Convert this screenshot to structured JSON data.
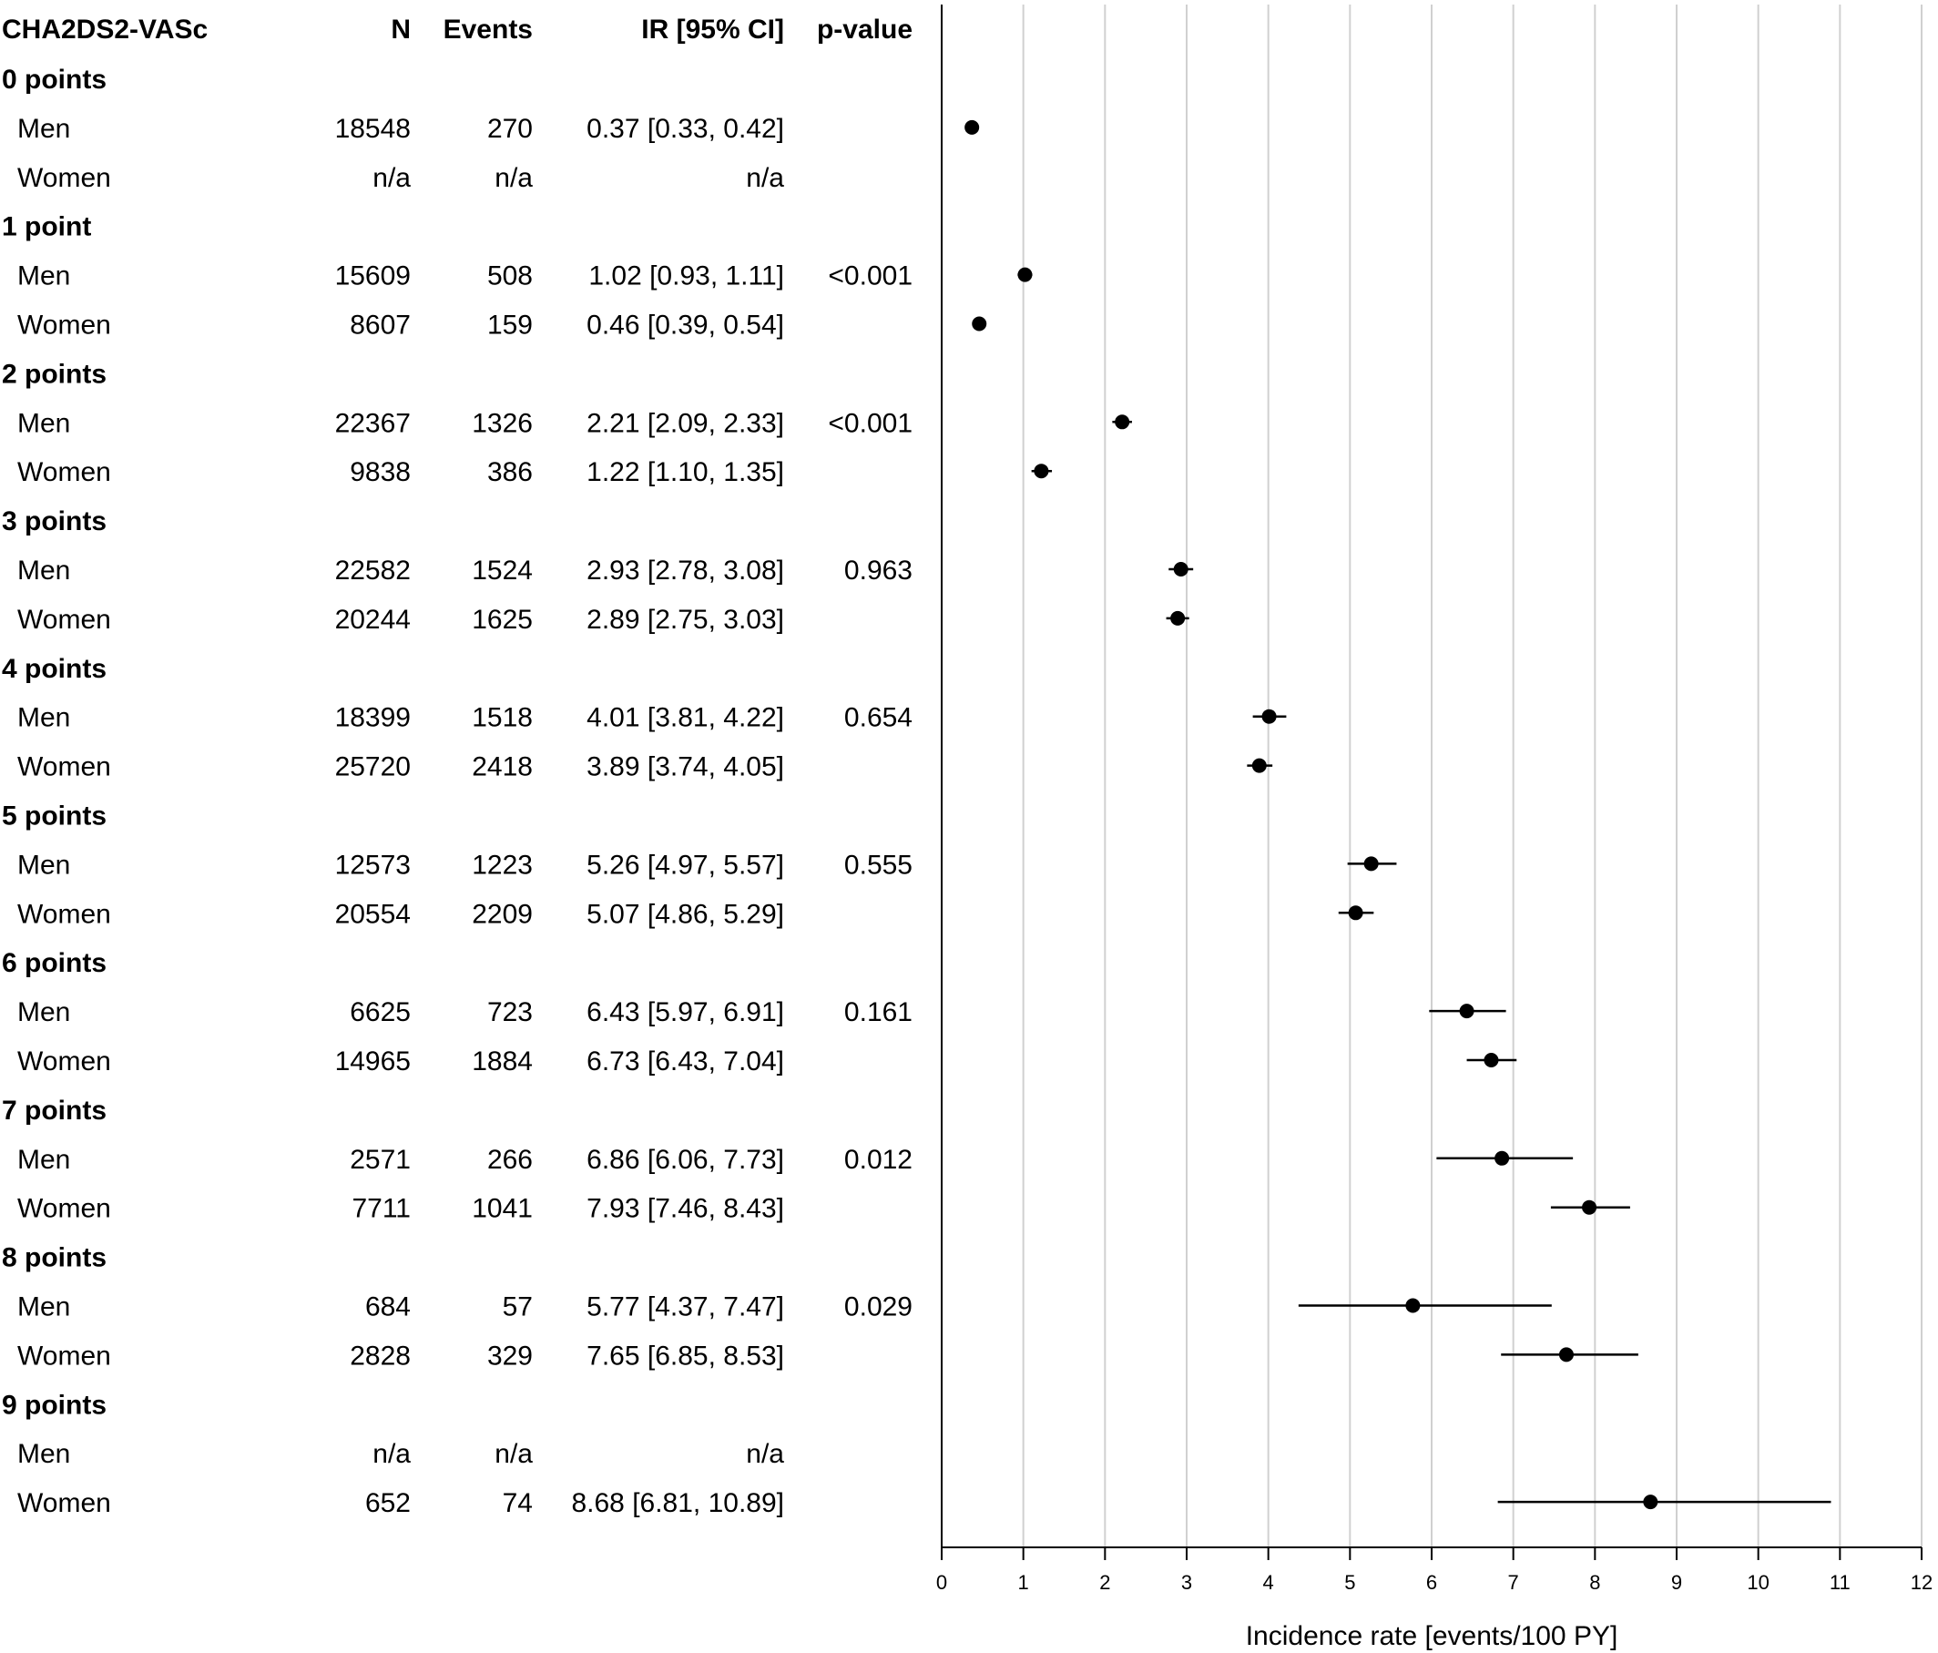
{
  "table": {
    "headers": {
      "label": "CHA2DS2-VASc",
      "n": "N",
      "events": "Events",
      "ir": "IR [95% CI]",
      "p": "p-value"
    }
  },
  "chart_data": {
    "type": "forest",
    "xlabel": "Incidence rate [events/100 PY]",
    "xlim": [
      0,
      12
    ],
    "xticks": [
      "0",
      "1",
      "2",
      "3",
      "4",
      "5",
      "6",
      "7",
      "8",
      "9",
      "10",
      "11",
      "12"
    ],
    "grid": true,
    "groups": [
      {
        "label": "0 points",
        "rows": [
          {
            "label": "Men",
            "n": "18548",
            "events": "270",
            "ir_text": "0.37 [0.33, 0.42]",
            "p": "",
            "ir": 0.37,
            "lo": 0.33,
            "hi": 0.42
          },
          {
            "label": "Women",
            "n": "n/a",
            "events": "n/a",
            "ir_text": "n/a",
            "p": "",
            "ir": null,
            "lo": null,
            "hi": null
          }
        ]
      },
      {
        "label": "1 point",
        "rows": [
          {
            "label": "Men",
            "n": "15609",
            "events": "508",
            "ir_text": "1.02 [0.93, 1.11]",
            "p": "<0.001",
            "ir": 1.02,
            "lo": 0.93,
            "hi": 1.11
          },
          {
            "label": "Women",
            "n": "8607",
            "events": "159",
            "ir_text": "0.46 [0.39, 0.54]",
            "p": "",
            "ir": 0.46,
            "lo": 0.39,
            "hi": 0.54
          }
        ]
      },
      {
        "label": "2 points",
        "rows": [
          {
            "label": "Men",
            "n": "22367",
            "events": "1326",
            "ir_text": "2.21 [2.09, 2.33]",
            "p": "<0.001",
            "ir": 2.21,
            "lo": 2.09,
            "hi": 2.33
          },
          {
            "label": "Women",
            "n": "9838",
            "events": "386",
            "ir_text": "1.22 [1.10, 1.35]",
            "p": "",
            "ir": 1.22,
            "lo": 1.1,
            "hi": 1.35
          }
        ]
      },
      {
        "label": "3 points",
        "rows": [
          {
            "label": "Men",
            "n": "22582",
            "events": "1524",
            "ir_text": "2.93 [2.78, 3.08]",
            "p": "0.963",
            "ir": 2.93,
            "lo": 2.78,
            "hi": 3.08
          },
          {
            "label": "Women",
            "n": "20244",
            "events": "1625",
            "ir_text": "2.89 [2.75, 3.03]",
            "p": "",
            "ir": 2.89,
            "lo": 2.75,
            "hi": 3.03
          }
        ]
      },
      {
        "label": "4 points",
        "rows": [
          {
            "label": "Men",
            "n": "18399",
            "events": "1518",
            "ir_text": "4.01 [3.81, 4.22]",
            "p": "0.654",
            "ir": 4.01,
            "lo": 3.81,
            "hi": 4.22
          },
          {
            "label": "Women",
            "n": "25720",
            "events": "2418",
            "ir_text": "3.89 [3.74, 4.05]",
            "p": "",
            "ir": 3.89,
            "lo": 3.74,
            "hi": 4.05
          }
        ]
      },
      {
        "label": "5 points",
        "rows": [
          {
            "label": "Men",
            "n": "12573",
            "events": "1223",
            "ir_text": "5.26 [4.97, 5.57]",
            "p": "0.555",
            "ir": 5.26,
            "lo": 4.97,
            "hi": 5.57
          },
          {
            "label": "Women",
            "n": "20554",
            "events": "2209",
            "ir_text": "5.07 [4.86, 5.29]",
            "p": "",
            "ir": 5.07,
            "lo": 4.86,
            "hi": 5.29
          }
        ]
      },
      {
        "label": "6 points",
        "rows": [
          {
            "label": "Men",
            "n": "6625",
            "events": "723",
            "ir_text": "6.43 [5.97, 6.91]",
            "p": "0.161",
            "ir": 6.43,
            "lo": 5.97,
            "hi": 6.91
          },
          {
            "label": "Women",
            "n": "14965",
            "events": "1884",
            "ir_text": "6.73 [6.43, 7.04]",
            "p": "",
            "ir": 6.73,
            "lo": 6.43,
            "hi": 7.04
          }
        ]
      },
      {
        "label": "7 points",
        "rows": [
          {
            "label": "Men",
            "n": "2571",
            "events": "266",
            "ir_text": "6.86 [6.06, 7.73]",
            "p": "0.012",
            "ir": 6.86,
            "lo": 6.06,
            "hi": 7.73
          },
          {
            "label": "Women",
            "n": "7711",
            "events": "1041",
            "ir_text": "7.93 [7.46, 8.43]",
            "p": "",
            "ir": 7.93,
            "lo": 7.46,
            "hi": 8.43
          }
        ]
      },
      {
        "label": "8 points",
        "rows": [
          {
            "label": "Men",
            "n": "684",
            "events": "57",
            "ir_text": "5.77 [4.37, 7.47]",
            "p": "0.029",
            "ir": 5.77,
            "lo": 4.37,
            "hi": 7.47
          },
          {
            "label": "Women",
            "n": "2828",
            "events": "329",
            "ir_text": "7.65 [6.85, 8.53]",
            "p": "",
            "ir": 7.65,
            "lo": 6.85,
            "hi": 8.53
          }
        ]
      },
      {
        "label": "9 points",
        "rows": [
          {
            "label": "Men",
            "n": "n/a",
            "events": "n/a",
            "ir_text": "n/a",
            "p": "",
            "ir": null,
            "lo": null,
            "hi": null
          },
          {
            "label": "Women",
            "n": "652",
            "events": "74",
            "ir_text": "8.68 [6.81, 10.89]",
            "p": "",
            "ir": 8.68,
            "lo": 6.81,
            "hi": 10.89
          }
        ]
      }
    ]
  }
}
